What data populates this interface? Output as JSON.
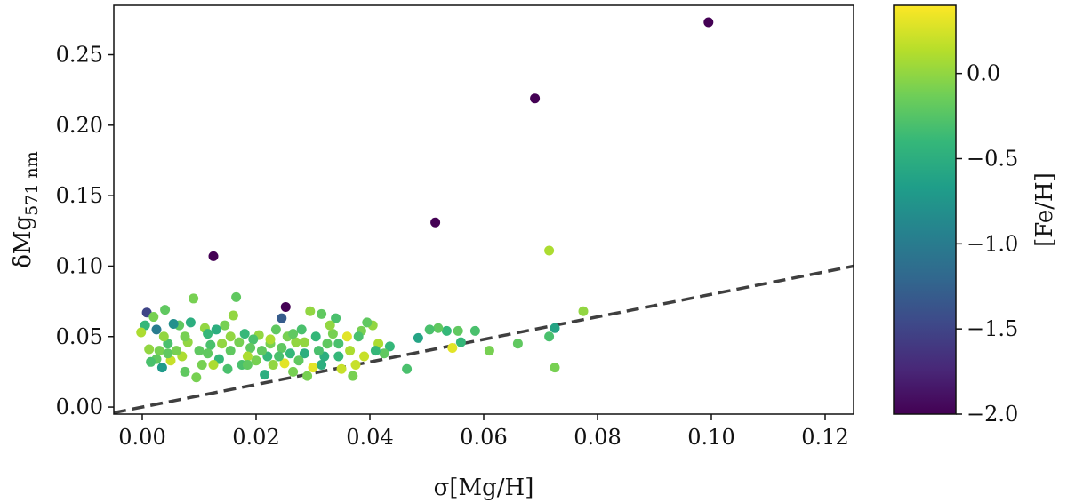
{
  "chart_data": {
    "type": "scatter",
    "title": "",
    "xlabel": "σ[Mg/H]",
    "ylabel_main": "δMg",
    "ylabel_sub": "571 nm",
    "xlim": [
      -0.005,
      0.125
    ],
    "ylim": [
      -0.005,
      0.285
    ],
    "x_ticks": [
      0.0,
      0.02,
      0.04,
      0.06,
      0.08,
      0.1,
      0.12
    ],
    "x_tick_labels": [
      "0.00",
      "0.02",
      "0.04",
      "0.06",
      "0.08",
      "0.10",
      "0.12"
    ],
    "y_ticks": [
      0.0,
      0.05,
      0.1,
      0.15,
      0.2,
      0.25
    ],
    "y_tick_labels": [
      "0.00",
      "0.05",
      "0.10",
      "0.15",
      "0.20",
      "0.25"
    ],
    "reference_line": {
      "style": "dashed",
      "color": "#3f3f3f",
      "points": [
        [
          -0.005,
          -0.004
        ],
        [
          0.125,
          0.1
        ]
      ]
    },
    "colorbar": {
      "label": "[Fe/H]",
      "range": [
        -2.0,
        0.4
      ],
      "ticks": [
        0.0,
        -0.5,
        -1.0,
        -1.5,
        -2.0
      ],
      "tick_labels": [
        "0.0",
        "−0.5",
        "−1.0",
        "−1.5",
        "−2.0"
      ],
      "colormap": "viridis",
      "stops": [
        "#440154",
        "#482878",
        "#3e4989",
        "#31688e",
        "#26828e",
        "#1f9e89",
        "#35b779",
        "#6ece58",
        "#b5de2b",
        "#fde725"
      ]
    },
    "points": [
      {
        "x": 0.0995,
        "y": 0.273,
        "c": -2.0
      },
      {
        "x": 0.069,
        "y": 0.219,
        "c": -2.0
      },
      {
        "x": 0.0515,
        "y": 0.131,
        "c": -2.0
      },
      {
        "x": 0.0125,
        "y": 0.107,
        "c": -2.0
      },
      {
        "x": 0.0252,
        "y": 0.071,
        "c": -2.0
      },
      {
        "x": 0.0245,
        "y": 0.063,
        "c": -1.3
      },
      {
        "x": 0.0008,
        "y": 0.067,
        "c": -1.5
      },
      {
        "x": 0.0025,
        "y": 0.055,
        "c": -1.0
      },
      {
        "x": 0.0715,
        "y": 0.111,
        "c": 0.1
      },
      {
        "x": 0.0775,
        "y": 0.068,
        "c": 0.0
      },
      {
        "x": 0.0725,
        "y": 0.056,
        "c": -0.6
      },
      {
        "x": 0.0715,
        "y": 0.05,
        "c": -0.3
      },
      {
        "x": 0.0725,
        "y": 0.028,
        "c": -0.1
      },
      {
        "x": 0.066,
        "y": 0.045,
        "c": -0.2
      },
      {
        "x": 0.061,
        "y": 0.04,
        "c": -0.1
      },
      {
        "x": 0.0585,
        "y": 0.054,
        "c": -0.3
      },
      {
        "x": 0.056,
        "y": 0.046,
        "c": -0.4
      },
      {
        "x": 0.0555,
        "y": 0.054,
        "c": -0.2
      },
      {
        "x": 0.0545,
        "y": 0.042,
        "c": 0.3
      },
      {
        "x": 0.0535,
        "y": 0.054,
        "c": -0.4
      },
      {
        "x": 0.052,
        "y": 0.056,
        "c": -0.2
      },
      {
        "x": 0.0505,
        "y": 0.055,
        "c": -0.3
      },
      {
        "x": 0.0485,
        "y": 0.049,
        "c": -0.6
      },
      {
        "x": 0.0465,
        "y": 0.027,
        "c": -0.3
      },
      {
        "x": 0.0435,
        "y": 0.043,
        "c": -0.4
      },
      {
        "x": 0.0425,
        "y": 0.038,
        "c": -0.2
      },
      {
        "x": 0.0415,
        "y": 0.045,
        "c": 0.1
      },
      {
        "x": 0.0405,
        "y": 0.058,
        "c": 0.0
      },
      {
        "x": 0.0395,
        "y": 0.06,
        "c": -0.2
      },
      {
        "x": 0.0385,
        "y": 0.054,
        "c": -0.1
      },
      {
        "x": 0.038,
        "y": 0.05,
        "c": -0.3
      },
      {
        "x": 0.0375,
        "y": 0.03,
        "c": 0.2
      },
      {
        "x": 0.037,
        "y": 0.022,
        "c": -0.1
      },
      {
        "x": 0.0365,
        "y": 0.04,
        "c": 0.1
      },
      {
        "x": 0.036,
        "y": 0.05,
        "c": 0.3
      },
      {
        "x": 0.035,
        "y": 0.027,
        "c": 0.2
      },
      {
        "x": 0.0345,
        "y": 0.036,
        "c": -0.4
      },
      {
        "x": 0.034,
        "y": 0.063,
        "c": -0.3
      },
      {
        "x": 0.0335,
        "y": 0.052,
        "c": -0.1
      },
      {
        "x": 0.033,
        "y": 0.058,
        "c": 0.0
      },
      {
        "x": 0.0325,
        "y": 0.045,
        "c": -0.2
      },
      {
        "x": 0.032,
        "y": 0.036,
        "c": -0.5
      },
      {
        "x": 0.0315,
        "y": 0.066,
        "c": -0.2
      },
      {
        "x": 0.031,
        "y": 0.04,
        "c": -0.3
      },
      {
        "x": 0.0305,
        "y": 0.05,
        "c": -0.4
      },
      {
        "x": 0.03,
        "y": 0.028,
        "c": 0.3
      },
      {
        "x": 0.0295,
        "y": 0.068,
        "c": 0.0
      },
      {
        "x": 0.029,
        "y": 0.022,
        "c": -0.1
      },
      {
        "x": 0.0285,
        "y": 0.038,
        "c": -0.5
      },
      {
        "x": 0.028,
        "y": 0.055,
        "c": -0.3
      },
      {
        "x": 0.0275,
        "y": 0.033,
        "c": -0.2
      },
      {
        "x": 0.027,
        "y": 0.046,
        "c": 0.0
      },
      {
        "x": 0.0265,
        "y": 0.025,
        "c": -0.1
      },
      {
        "x": 0.026,
        "y": 0.038,
        "c": -0.4
      },
      {
        "x": 0.0255,
        "y": 0.05,
        "c": -0.1
      },
      {
        "x": 0.025,
        "y": 0.031,
        "c": 0.3
      },
      {
        "x": 0.0245,
        "y": 0.042,
        "c": -0.2
      },
      {
        "x": 0.024,
        "y": 0.036,
        "c": -0.3
      },
      {
        "x": 0.0235,
        "y": 0.055,
        "c": -0.2
      },
      {
        "x": 0.023,
        "y": 0.03,
        "c": 0.0
      },
      {
        "x": 0.0225,
        "y": 0.045,
        "c": -0.1
      },
      {
        "x": 0.022,
        "y": 0.036,
        "c": -0.4
      },
      {
        "x": 0.0215,
        "y": 0.023,
        "c": -0.5
      },
      {
        "x": 0.021,
        "y": 0.04,
        "c": -0.2
      },
      {
        "x": 0.0205,
        "y": 0.051,
        "c": 0.0
      },
      {
        "x": 0.02,
        "y": 0.033,
        "c": -0.1
      },
      {
        "x": 0.0195,
        "y": 0.048,
        "c": -0.3
      },
      {
        "x": 0.019,
        "y": 0.042,
        "c": -0.2
      },
      {
        "x": 0.0185,
        "y": 0.036,
        "c": 0.1
      },
      {
        "x": 0.018,
        "y": 0.052,
        "c": -0.4
      },
      {
        "x": 0.0175,
        "y": 0.03,
        "c": -0.3
      },
      {
        "x": 0.017,
        "y": 0.046,
        "c": -0.1
      },
      {
        "x": 0.0165,
        "y": 0.078,
        "c": -0.2
      },
      {
        "x": 0.016,
        "y": 0.065,
        "c": 0.0
      },
      {
        "x": 0.0155,
        "y": 0.04,
        "c": -0.2
      },
      {
        "x": 0.015,
        "y": 0.027,
        "c": -0.3
      },
      {
        "x": 0.0145,
        "y": 0.058,
        "c": -0.1
      },
      {
        "x": 0.014,
        "y": 0.045,
        "c": 0.0
      },
      {
        "x": 0.0135,
        "y": 0.034,
        "c": -0.4
      },
      {
        "x": 0.013,
        "y": 0.055,
        "c": -0.5
      },
      {
        "x": 0.0125,
        "y": 0.03,
        "c": 0.1
      },
      {
        "x": 0.012,
        "y": 0.044,
        "c": -0.3
      },
      {
        "x": 0.0115,
        "y": 0.038,
        "c": -0.2
      },
      {
        "x": 0.011,
        "y": 0.056,
        "c": 0.0
      },
      {
        "x": 0.0105,
        "y": 0.03,
        "c": -0.1
      },
      {
        "x": 0.01,
        "y": 0.04,
        "c": -0.2
      },
      {
        "x": 0.0095,
        "y": 0.021,
        "c": -0.1
      },
      {
        "x": 0.009,
        "y": 0.077,
        "c": -0.1
      },
      {
        "x": 0.0085,
        "y": 0.06,
        "c": -0.5
      },
      {
        "x": 0.008,
        "y": 0.046,
        "c": 0.0
      },
      {
        "x": 0.0075,
        "y": 0.025,
        "c": -0.2
      },
      {
        "x": 0.007,
        "y": 0.036,
        "c": 0.1
      },
      {
        "x": 0.0065,
        "y": 0.058,
        "c": -0.2
      },
      {
        "x": 0.006,
        "y": 0.04,
        "c": -0.1
      },
      {
        "x": 0.0055,
        "y": 0.059,
        "c": -0.8
      },
      {
        "x": 0.005,
        "y": 0.033,
        "c": 0.2
      },
      {
        "x": 0.0045,
        "y": 0.045,
        "c": -0.3
      },
      {
        "x": 0.004,
        "y": 0.069,
        "c": -0.2
      },
      {
        "x": 0.0038,
        "y": 0.05,
        "c": 0.0
      },
      {
        "x": 0.0035,
        "y": 0.028,
        "c": -0.7
      },
      {
        "x": 0.003,
        "y": 0.04,
        "c": -0.1
      },
      {
        "x": 0.0025,
        "y": 0.034,
        "c": -0.2
      },
      {
        "x": 0.002,
        "y": 0.064,
        "c": -0.1
      },
      {
        "x": 0.0015,
        "y": 0.032,
        "c": -0.3
      },
      {
        "x": 0.0012,
        "y": 0.041,
        "c": 0.0
      },
      {
        "x": 0.0005,
        "y": 0.058,
        "c": -0.4
      },
      {
        "x": -0.0002,
        "y": 0.053,
        "c": 0.1
      },
      {
        "x": 0.039,
        "y": 0.036,
        "c": 0.2
      },
      {
        "x": 0.041,
        "y": 0.04,
        "c": -0.4
      },
      {
        "x": 0.0345,
        "y": 0.045,
        "c": -0.3
      },
      {
        "x": 0.0315,
        "y": 0.03,
        "c": -0.5
      },
      {
        "x": 0.0265,
        "y": 0.052,
        "c": -0.2
      },
      {
        "x": 0.0225,
        "y": 0.048,
        "c": 0.1
      },
      {
        "x": 0.0185,
        "y": 0.03,
        "c": -0.2
      },
      {
        "x": 0.0155,
        "y": 0.05,
        "c": 0.0
      },
      {
        "x": 0.0115,
        "y": 0.052,
        "c": -0.4
      },
      {
        "x": 0.0075,
        "y": 0.05,
        "c": -0.1
      },
      {
        "x": 0.0045,
        "y": 0.038,
        "c": -0.2
      },
      {
        "x": 0.0285,
        "y": 0.046,
        "c": 0.0
      }
    ]
  }
}
